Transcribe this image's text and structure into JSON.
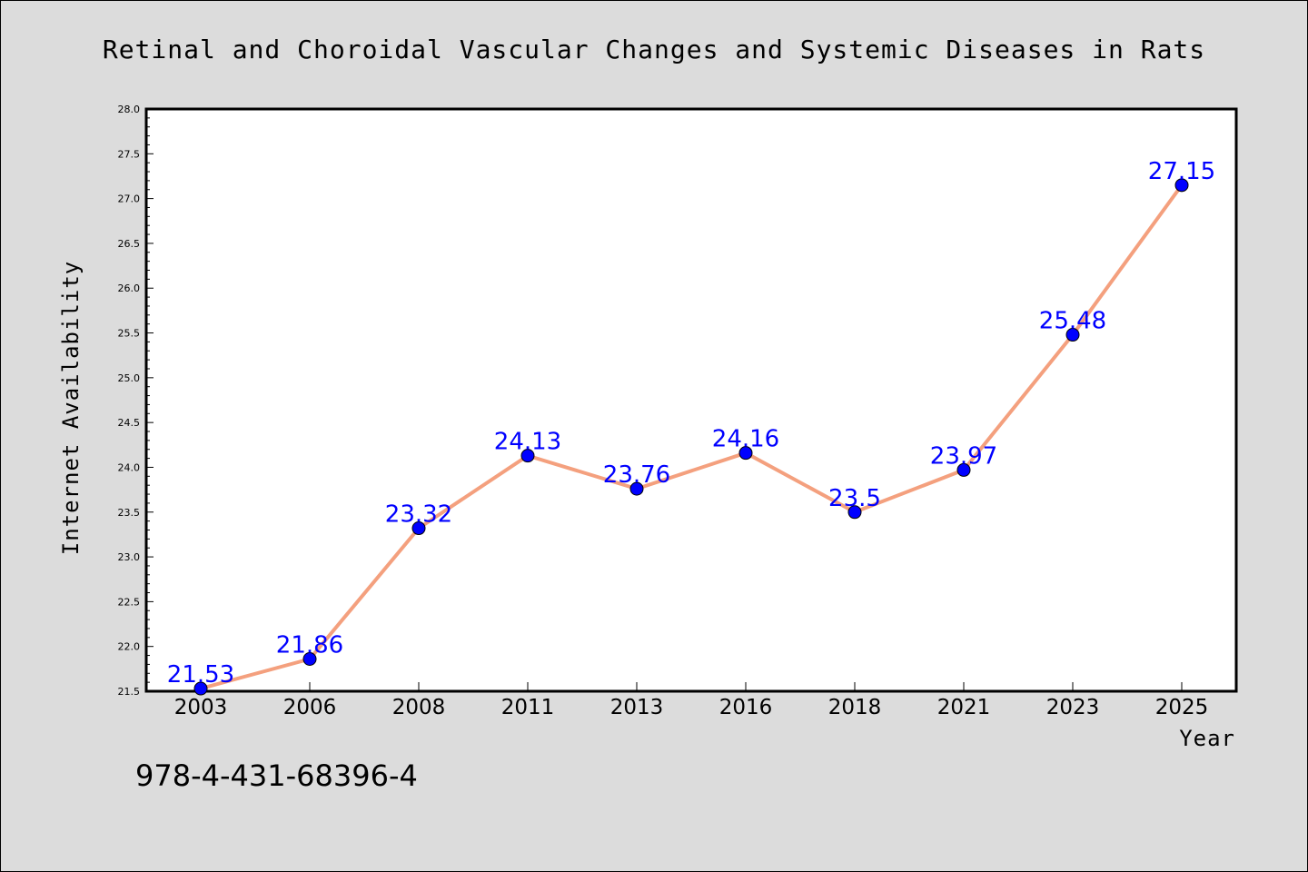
{
  "chart_data": {
    "type": "line",
    "title": "Retinal and Choroidal Vascular Changes and Systemic Diseases in Rats",
    "xlabel": "Year",
    "ylabel": "Internet Availability",
    "categories": [
      "2003",
      "2006",
      "2008",
      "2011",
      "2013",
      "2016",
      "2018",
      "2021",
      "2023",
      "2025"
    ],
    "values": [
      21.53,
      21.86,
      23.32,
      24.13,
      23.76,
      24.16,
      23.5,
      23.97,
      25.48,
      27.15
    ],
    "data_labels": [
      "21.53",
      "21.86",
      "23.32",
      "24.13",
      "23.76",
      "24.16",
      "23.5",
      "23.97",
      "25.48",
      "27.15"
    ],
    "ylim": [
      21.5,
      28.0
    ],
    "yticks": [
      "21.5",
      "22.0",
      "22.5",
      "23.0",
      "23.5",
      "24.0",
      "24.5",
      "25.0",
      "25.5",
      "26.0",
      "26.5",
      "27.0",
      "27.5",
      "28.0"
    ],
    "grid": false,
    "legend": "none",
    "colors": {
      "line": "#f4a07e",
      "marker": "#0000ff",
      "label": "#0000ff",
      "background": "#dcdcdc",
      "plot_background": "#ffffff"
    }
  },
  "footer": {
    "isbn": "978-4-431-68396-4"
  }
}
